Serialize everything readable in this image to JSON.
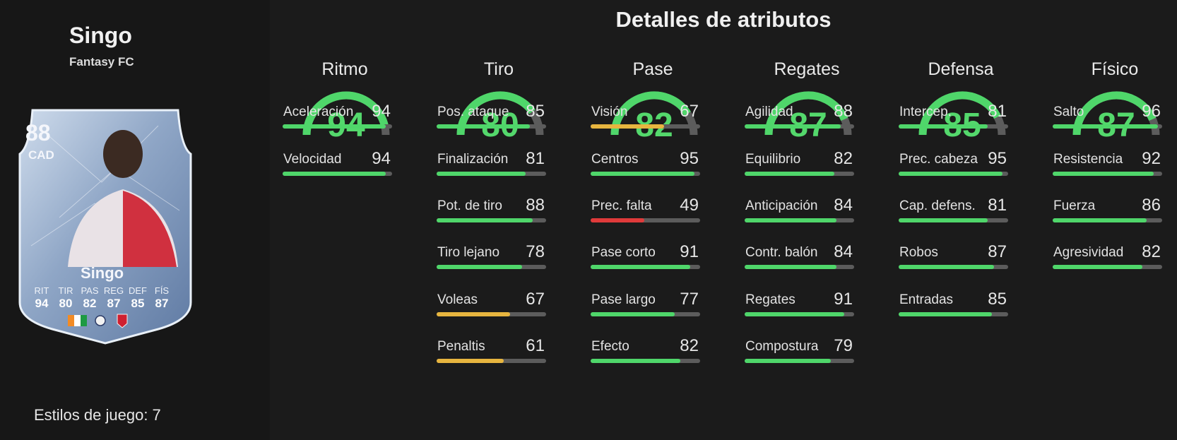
{
  "player": {
    "name": "Singo",
    "club": "Fantasy FC",
    "playstyles_label": "Estilos de juego:",
    "playstyles_count": "7"
  },
  "card": {
    "rating": "88",
    "position": "CAD",
    "name": "Singo",
    "stat_abbr": [
      "RIT",
      "TIR",
      "PAS",
      "REG",
      "DEF",
      "FÍS"
    ],
    "stat_values": [
      "94",
      "80",
      "82",
      "87",
      "85",
      "87"
    ]
  },
  "title": "Detalles de atributos",
  "colors": {
    "green": "#4fd66a",
    "yellow": "#e7b53f",
    "red": "#e03a3a",
    "track": "#5c5c5c"
  },
  "categories": [
    {
      "name": "Ritmo",
      "value": "94",
      "attrs": [
        {
          "name": "Aceleración",
          "value": "94"
        },
        {
          "name": "Velocidad",
          "value": "94"
        }
      ]
    },
    {
      "name": "Tiro",
      "value": "80",
      "attrs": [
        {
          "name": "Pos. ataque",
          "value": "85"
        },
        {
          "name": "Finalización",
          "value": "81"
        },
        {
          "name": "Pot. de tiro",
          "value": "88"
        },
        {
          "name": "Tiro lejano",
          "value": "78"
        },
        {
          "name": "Voleas",
          "value": "67"
        },
        {
          "name": "Penaltis",
          "value": "61"
        }
      ]
    },
    {
      "name": "Pase",
      "value": "82",
      "attrs": [
        {
          "name": "Visión",
          "value": "67"
        },
        {
          "name": "Centros",
          "value": "95"
        },
        {
          "name": "Prec. falta",
          "value": "49"
        },
        {
          "name": "Pase corto",
          "value": "91"
        },
        {
          "name": "Pase largo",
          "value": "77"
        },
        {
          "name": "Efecto",
          "value": "82"
        }
      ]
    },
    {
      "name": "Regates",
      "value": "87",
      "attrs": [
        {
          "name": "Agilidad",
          "value": "88"
        },
        {
          "name": "Equilibrio",
          "value": "82"
        },
        {
          "name": "Anticipación",
          "value": "84"
        },
        {
          "name": "Contr. balón",
          "value": "84"
        },
        {
          "name": "Regates",
          "value": "91"
        },
        {
          "name": "Compostura",
          "value": "79"
        }
      ]
    },
    {
      "name": "Defensa",
      "value": "85",
      "attrs": [
        {
          "name": "Intercep.",
          "value": "81"
        },
        {
          "name": "Prec. cabeza",
          "value": "95"
        },
        {
          "name": "Cap. defens.",
          "value": "81"
        },
        {
          "name": "Robos",
          "value": "87"
        },
        {
          "name": "Entradas",
          "value": "85"
        }
      ]
    },
    {
      "name": "Físico",
      "value": "87",
      "attrs": [
        {
          "name": "Salto",
          "value": "96"
        },
        {
          "name": "Resistencia",
          "value": "92"
        },
        {
          "name": "Fuerza",
          "value": "86"
        },
        {
          "name": "Agresividad",
          "value": "82"
        }
      ]
    }
  ]
}
